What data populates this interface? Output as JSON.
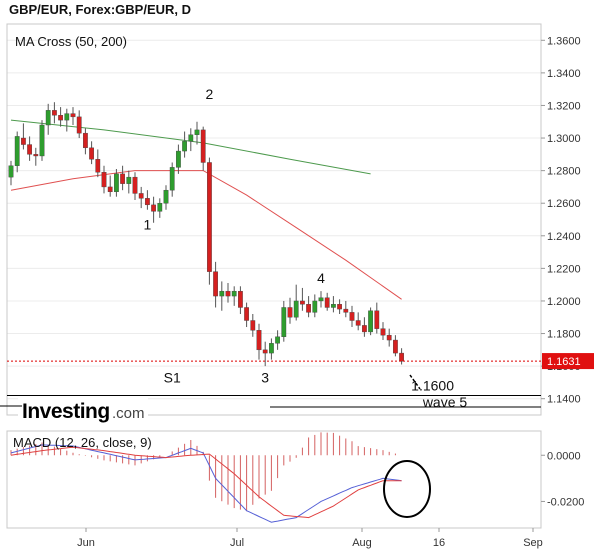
{
  "header": {
    "title": "GBP/EUR, Forex:GBP/EUR, D"
  },
  "brand": {
    "name": "Investing",
    "suffix": ".com"
  },
  "chart_data": [
    {
      "type": "candlestick",
      "indicator_label": "MA Cross (50, 200)",
      "ylim": [
        1.13,
        1.37
      ],
      "yticks": [
        "1.1400",
        "1.1600",
        "1.1800",
        "1.2000",
        "1.2200",
        "1.2400",
        "1.2600",
        "1.2800",
        "1.3000",
        "1.3200",
        "1.3400",
        "1.3600"
      ],
      "xticks": [
        "Jun",
        "Jul",
        "Aug",
        "16",
        "Sep"
      ],
      "last_price": {
        "value": 1.1631,
        "label": "1.1631"
      },
      "support_level": 1.142,
      "candles": [
        [
          1.276,
          1.286,
          1.271,
          1.283
        ],
        [
          1.283,
          1.304,
          1.279,
          1.301
        ],
        [
          1.3,
          1.309,
          1.293,
          1.296
        ],
        [
          1.296,
          1.301,
          1.286,
          1.29
        ],
        [
          1.29,
          1.294,
          1.283,
          1.289
        ],
        [
          1.289,
          1.311,
          1.286,
          1.308
        ],
        [
          1.308,
          1.321,
          1.302,
          1.317
        ],
        [
          1.317,
          1.322,
          1.309,
          1.314
        ],
        [
          1.314,
          1.319,
          1.307,
          1.311
        ],
        [
          1.311,
          1.318,
          1.304,
          1.315
        ],
        [
          1.315,
          1.319,
          1.308,
          1.313
        ],
        [
          1.313,
          1.317,
          1.3,
          1.303
        ],
        [
          1.303,
          1.306,
          1.29,
          1.294
        ],
        [
          1.294,
          1.298,
          1.284,
          1.287
        ],
        [
          1.287,
          1.293,
          1.276,
          1.279
        ],
        [
          1.279,
          1.283,
          1.266,
          1.27
        ],
        [
          1.27,
          1.277,
          1.264,
          1.267
        ],
        [
          1.267,
          1.281,
          1.264,
          1.278
        ],
        [
          1.278,
          1.283,
          1.268,
          1.272
        ],
        [
          1.272,
          1.28,
          1.266,
          1.276
        ],
        [
          1.276,
          1.279,
          1.262,
          1.266
        ],
        [
          1.266,
          1.27,
          1.257,
          1.263
        ],
        [
          1.263,
          1.268,
          1.256,
          1.259
        ],
        [
          1.259,
          1.264,
          1.248,
          1.255
        ],
        [
          1.255,
          1.263,
          1.251,
          1.26
        ],
        [
          1.26,
          1.271,
          1.256,
          1.268
        ],
        [
          1.268,
          1.285,
          1.264,
          1.282
        ],
        [
          1.282,
          1.296,
          1.278,
          1.292
        ],
        [
          1.292,
          1.304,
          1.288,
          1.298
        ],
        [
          1.298,
          1.306,
          1.292,
          1.302
        ],
        [
          1.302,
          1.31,
          1.296,
          1.305
        ],
        [
          1.305,
          1.307,
          1.28,
          1.285
        ],
        [
          1.285,
          1.288,
          1.21,
          1.218
        ],
        [
          1.218,
          1.224,
          1.196,
          1.203
        ],
        [
          1.203,
          1.212,
          1.194,
          1.206
        ],
        [
          1.206,
          1.211,
          1.199,
          1.203
        ],
        [
          1.203,
          1.209,
          1.197,
          1.206
        ],
        [
          1.206,
          1.209,
          1.192,
          1.196
        ],
        [
          1.196,
          1.199,
          1.184,
          1.188
        ],
        [
          1.188,
          1.192,
          1.178,
          1.182
        ],
        [
          1.182,
          1.186,
          1.164,
          1.17
        ],
        [
          1.17,
          1.175,
          1.16,
          1.168
        ],
        [
          1.168,
          1.177,
          1.164,
          1.174
        ],
        [
          1.174,
          1.182,
          1.17,
          1.178
        ],
        [
          1.178,
          1.2,
          1.175,
          1.196
        ],
        [
          1.196,
          1.202,
          1.186,
          1.19
        ],
        [
          1.19,
          1.21,
          1.188,
          1.2
        ],
        [
          1.2,
          1.208,
          1.194,
          1.198
        ],
        [
          1.198,
          1.203,
          1.19,
          1.193
        ],
        [
          1.193,
          1.204,
          1.19,
          1.2
        ],
        [
          1.2,
          1.206,
          1.196,
          1.202
        ],
        [
          1.202,
          1.205,
          1.194,
          1.196
        ],
        [
          1.196,
          1.203,
          1.193,
          1.198
        ],
        [
          1.198,
          1.201,
          1.192,
          1.195
        ],
        [
          1.195,
          1.2,
          1.19,
          1.193
        ],
        [
          1.193,
          1.197,
          1.184,
          1.188
        ],
        [
          1.188,
          1.193,
          1.182,
          1.185
        ],
        [
          1.185,
          1.19,
          1.178,
          1.181
        ],
        [
          1.181,
          1.196,
          1.179,
          1.194
        ],
        [
          1.194,
          1.199,
          1.18,
          1.183
        ],
        [
          1.183,
          1.187,
          1.176,
          1.179
        ],
        [
          1.179,
          1.183,
          1.172,
          1.176
        ],
        [
          1.176,
          1.179,
          1.166,
          1.168
        ],
        [
          1.168,
          1.171,
          1.161,
          1.163
        ]
      ],
      "ma_50": {
        "x": [
          0,
          10,
          20,
          31,
          38,
          46,
          54,
          63
        ],
        "values": [
          1.268,
          1.275,
          1.28,
          1.28,
          1.265,
          1.245,
          1.225,
          1.201
        ]
      },
      "ma_200": {
        "x": [
          0,
          15,
          31,
          45,
          58
        ],
        "values": [
          1.311,
          1.305,
          1.297,
          1.287,
          1.278
        ]
      },
      "annotations": [
        {
          "text": "1",
          "x": 22,
          "y": 1.244
        },
        {
          "text": "2",
          "x": 32,
          "y": 1.324
        },
        {
          "text": "3",
          "x": 41,
          "y": 1.15
        },
        {
          "text": "4",
          "x": 50,
          "y": 1.211
        },
        {
          "text": "S1",
          "x": 26,
          "y": 1.15
        },
        {
          "text": "1.1600",
          "x": 68,
          "y": 1.145
        },
        {
          "text": "wave 5",
          "x": 70,
          "y": 1.135
        }
      ]
    },
    {
      "type": "macd",
      "label": "MACD (12, 26, close, 9)",
      "ylim": [
        -0.0315,
        0.0105
      ],
      "yticks": [
        "0.0000",
        "-0.0200"
      ],
      "macd": {
        "x": [
          0,
          5,
          10,
          15,
          20,
          25,
          29,
          31,
          33,
          38,
          42,
          46,
          50,
          55,
          60,
          63
        ],
        "values": [
          0.001,
          0.0045,
          0.004,
          0.001,
          -0.002,
          -0.001,
          0.003,
          0.001,
          -0.01,
          -0.024,
          -0.029,
          -0.027,
          -0.02,
          -0.014,
          -0.01,
          -0.011
        ]
      },
      "signal": {
        "x": [
          0,
          5,
          10,
          15,
          20,
          25,
          29,
          32,
          36,
          40,
          44,
          48,
          52,
          56,
          60,
          63
        ],
        "values": [
          0.0,
          0.002,
          0.0035,
          0.002,
          0.0,
          -0.001,
          0.0,
          0.0005,
          -0.008,
          -0.018,
          -0.026,
          -0.027,
          -0.022,
          -0.015,
          -0.011,
          -0.011
        ]
      }
    }
  ]
}
